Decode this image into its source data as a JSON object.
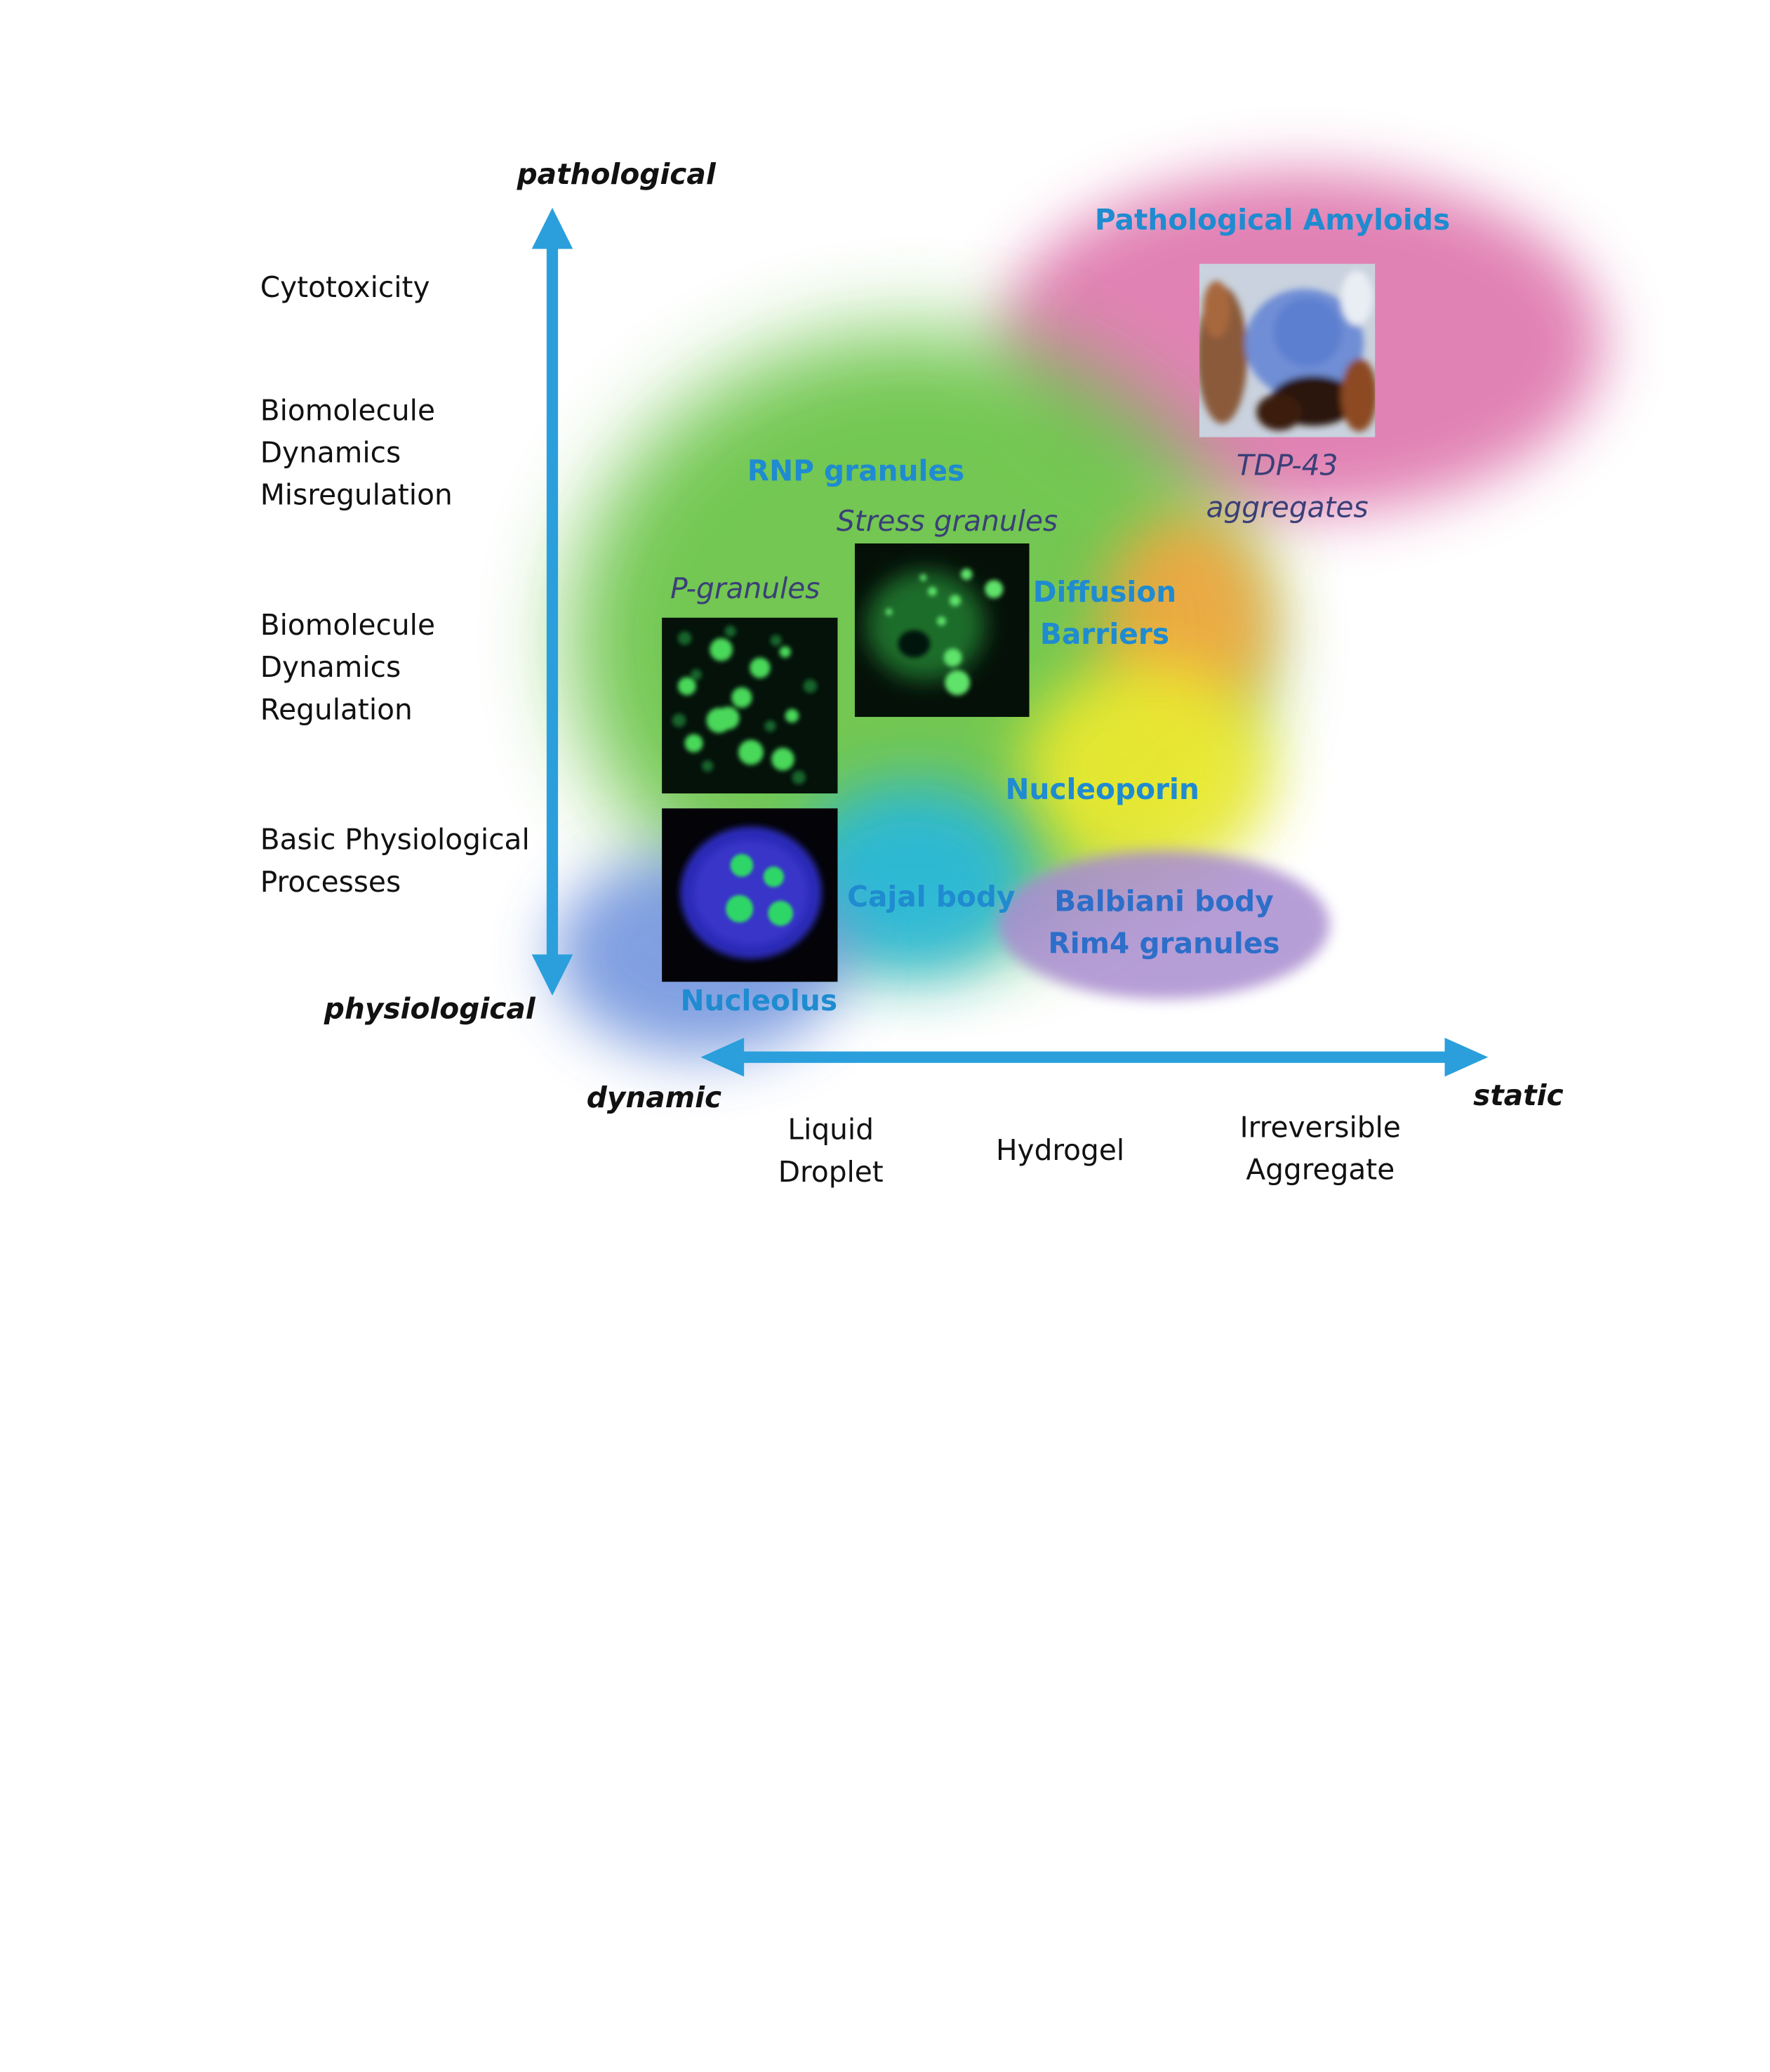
{
  "y_axis": {
    "top_label": "pathological",
    "bottom_label": "physiological",
    "levels": [
      "Cytotoxicity",
      "Biomolecule\nDynamics\nMisregulation",
      "Biomolecule\nDynamics\nRegulation",
      "Basic Physiological\nProcesses"
    ]
  },
  "x_axis": {
    "left_label": "dynamic",
    "right_label": "static",
    "states": [
      "Liquid\nDroplet",
      "Hydrogel",
      "Irreversible\nAggregate"
    ]
  },
  "condensates": {
    "pathological_amyloids": "Pathological Amyloids",
    "tdp43": "TDP-43\naggregates",
    "rnp_granules": "RNP granules",
    "stress_granules": "Stress granules",
    "p_granules": "P-granules",
    "diffusion_barriers": "Diffusion\nBarriers",
    "nucleoporin": "Nucleoporin",
    "cajal_body": "Cajal body",
    "balbiani_body": "Balbiani body\nRim4 granules",
    "nucleolus": "Nucleolus"
  },
  "colors": {
    "arrow": "#2a9fdc",
    "label_blue": "#1f8bd0",
    "caption_navy": "#3a3f78",
    "balbiani_text": "#2d6ec9",
    "pathological_region": "#e07bb0",
    "rnp_region": "#6cc54a",
    "diffusion_region": "#f6a640",
    "nucleoporin_region": "#f0ea2e",
    "cajal_region": "#27b7e0",
    "nucleolus_region": "#6a8fdc",
    "balbiani_region": "#a98ccf"
  }
}
